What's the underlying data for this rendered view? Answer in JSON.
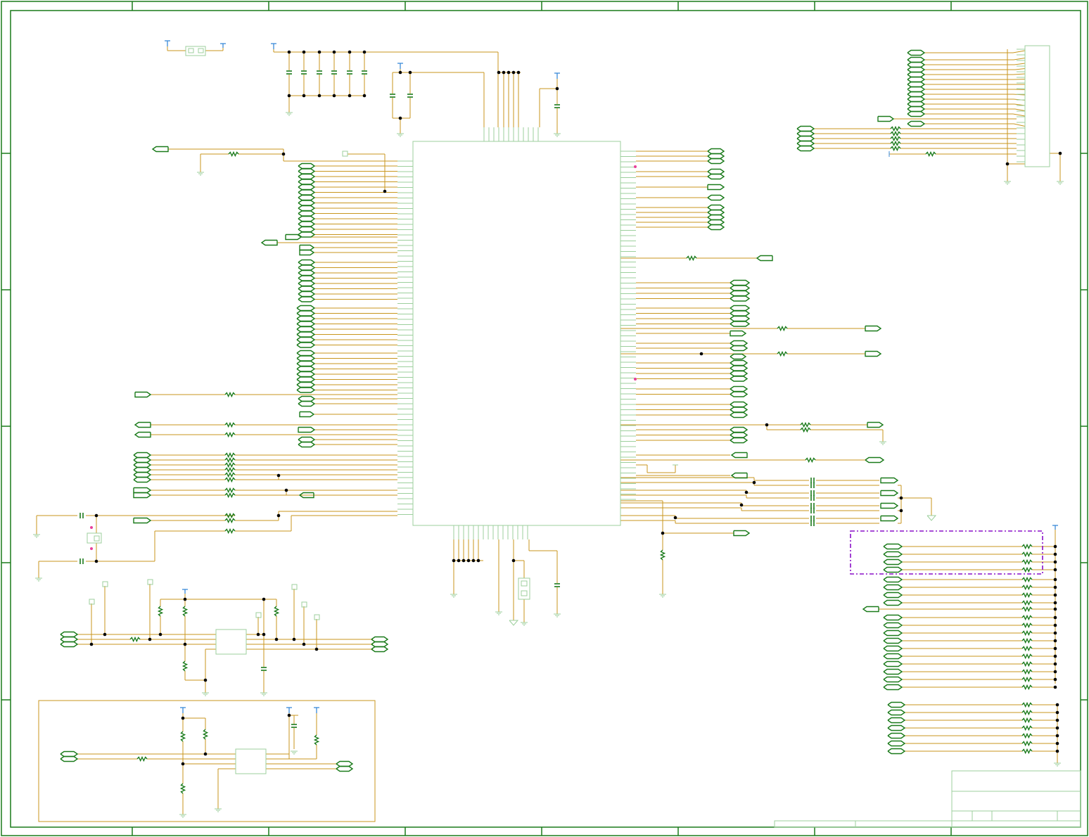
{
  "sheet": {
    "background": "#ffffff",
    "colors": {
      "frame": "#1a7a1a",
      "wire": "#c8961e",
      "component": "#9ccf9c",
      "net_label": "#1a7a1a",
      "junction": "#000000",
      "power_port": "#3a8ad8",
      "no_connect": "#e8409a",
      "highlight_box": "#8a10c8",
      "sub_block": "#c8961e"
    },
    "title_block_text": []
  },
  "components": {
    "main_ic": "main-ic",
    "regulator_top": "regulator-ic-upper",
    "regulator_bottom": "regulator-ic-lower",
    "header_connector": "pin-header-connector",
    "jumpers": [
      "jumper-top-left",
      "jumper-bottom-center",
      "crystal"
    ]
  },
  "annotations": {
    "highlight_region": "dash-dot-highlight-region",
    "sub_block": "sub-circuit-block"
  }
}
